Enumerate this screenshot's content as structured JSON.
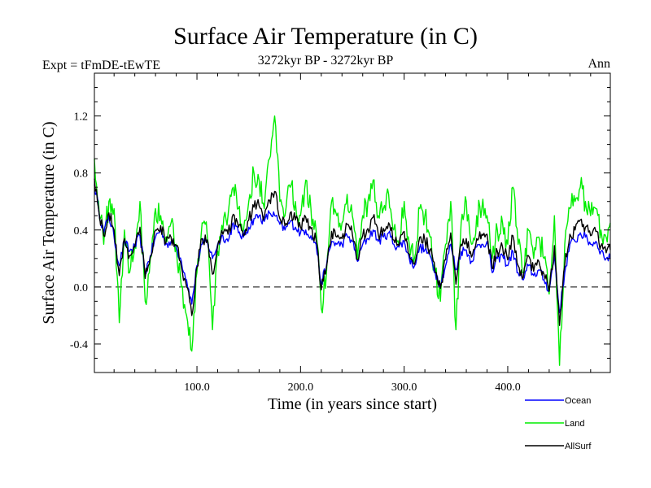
{
  "chart_data": {
    "type": "line",
    "title": "Surface Air Temperature (in C)",
    "subtitle": "3272kyr BP - 3272kyr BP",
    "expt_label": "Expt = tFmDE-tEwTE",
    "season_label": "Ann",
    "xlabel": "Time (in years since start)",
    "ylabel": "Surface Air Temperature (in C)",
    "xlim": [
      1,
      499
    ],
    "ylim": [
      -0.6,
      1.5
    ],
    "xticks": [
      100,
      200,
      300,
      400
    ],
    "xtick_labels": [
      "100.0",
      "200.0",
      "300.0",
      "400.0"
    ],
    "yticks": [
      -0.4,
      0.0,
      0.4,
      0.8,
      1.2
    ],
    "ytick_labels": [
      "-0.4",
      "0.0",
      "0.4",
      "0.8",
      "1.2"
    ],
    "zero_line": true,
    "series": [
      {
        "name": "Ocean",
        "color": "#0000ff",
        "x": [
          1,
          5,
          10,
          15,
          20,
          25,
          30,
          35,
          40,
          45,
          50,
          55,
          60,
          65,
          70,
          75,
          80,
          85,
          90,
          95,
          100,
          105,
          110,
          115,
          120,
          125,
          130,
          135,
          140,
          145,
          150,
          155,
          160,
          165,
          170,
          175,
          180,
          185,
          190,
          195,
          200,
          205,
          210,
          215,
          220,
          225,
          230,
          235,
          240,
          245,
          250,
          255,
          260,
          265,
          270,
          275,
          280,
          285,
          290,
          295,
          300,
          305,
          310,
          315,
          320,
          325,
          330,
          335,
          340,
          345,
          350,
          355,
          360,
          365,
          370,
          375,
          380,
          385,
          390,
          395,
          400,
          405,
          410,
          415,
          420,
          425,
          430,
          435,
          440,
          445,
          450,
          455,
          460,
          465,
          470,
          475,
          480,
          485,
          490,
          495,
          499
        ],
        "values": [
          0.72,
          0.55,
          0.38,
          0.5,
          0.35,
          0.15,
          0.32,
          0.25,
          0.28,
          0.36,
          0.1,
          0.22,
          0.35,
          0.4,
          0.3,
          0.32,
          0.28,
          0.18,
          0.05,
          -0.12,
          0.15,
          0.3,
          0.32,
          0.2,
          0.3,
          0.36,
          0.32,
          0.45,
          0.38,
          0.35,
          0.42,
          0.48,
          0.5,
          0.46,
          0.52,
          0.5,
          0.44,
          0.4,
          0.46,
          0.42,
          0.38,
          0.4,
          0.36,
          0.3,
          0.02,
          0.15,
          0.32,
          0.3,
          0.3,
          0.36,
          0.32,
          0.18,
          0.3,
          0.34,
          0.4,
          0.32,
          0.35,
          0.38,
          0.3,
          0.28,
          0.32,
          0.2,
          0.15,
          0.28,
          0.26,
          0.22,
          0.1,
          0.02,
          0.15,
          0.3,
          0.12,
          0.25,
          0.26,
          0.18,
          0.28,
          0.3,
          0.32,
          0.1,
          0.2,
          0.22,
          0.15,
          0.25,
          0.1,
          0.05,
          0.15,
          0.08,
          0.12,
          0.05,
          -0.02,
          0.22,
          -0.18,
          0.1,
          0.3,
          0.32,
          0.38,
          0.35,
          0.3,
          0.32,
          0.25,
          0.2,
          0.2
        ]
      },
      {
        "name": "Land",
        "color": "#00ee00",
        "x": [
          1,
          5,
          10,
          15,
          20,
          25,
          30,
          35,
          40,
          45,
          50,
          55,
          60,
          65,
          70,
          75,
          80,
          85,
          90,
          95,
          100,
          105,
          110,
          115,
          120,
          125,
          130,
          135,
          140,
          145,
          150,
          155,
          160,
          165,
          170,
          175,
          180,
          185,
          190,
          195,
          200,
          205,
          210,
          215,
          220,
          225,
          230,
          235,
          240,
          245,
          250,
          255,
          260,
          265,
          270,
          275,
          280,
          285,
          290,
          295,
          300,
          305,
          310,
          315,
          320,
          325,
          330,
          335,
          340,
          345,
          350,
          355,
          360,
          365,
          370,
          375,
          380,
          385,
          390,
          395,
          400,
          405,
          410,
          415,
          420,
          425,
          430,
          435,
          440,
          445,
          450,
          455,
          460,
          465,
          470,
          475,
          480,
          485,
          490,
          495,
          499
        ],
        "values": [
          0.9,
          0.6,
          0.3,
          0.6,
          0.55,
          -0.25,
          0.4,
          0.1,
          0.3,
          0.6,
          -0.1,
          0.2,
          0.55,
          0.5,
          0.35,
          0.45,
          0.3,
          0.0,
          -0.2,
          -0.45,
          0.1,
          0.45,
          0.35,
          -0.3,
          0.25,
          0.4,
          0.5,
          0.7,
          0.55,
          0.4,
          0.6,
          0.8,
          0.75,
          0.55,
          0.9,
          1.2,
          0.6,
          0.5,
          0.7,
          0.6,
          0.5,
          0.75,
          0.55,
          0.4,
          -0.15,
          0.1,
          0.6,
          0.5,
          0.45,
          0.65,
          0.5,
          0.2,
          0.5,
          0.6,
          0.75,
          0.5,
          0.55,
          0.65,
          0.4,
          0.3,
          0.6,
          0.3,
          0.2,
          0.55,
          0.5,
          0.35,
          0.1,
          -0.1,
          0.3,
          0.6,
          -0.3,
          0.45,
          0.6,
          0.3,
          0.5,
          0.55,
          0.5,
          0.2,
          0.4,
          0.45,
          0.3,
          0.7,
          0.3,
          0.1,
          0.4,
          0.2,
          0.35,
          0.2,
          -0.05,
          0.5,
          -0.55,
          0.3,
          0.55,
          0.6,
          0.7,
          0.6,
          0.5,
          0.55,
          0.4,
          0.35,
          0.45
        ]
      },
      {
        "name": "AllSurf",
        "color": "#000000",
        "x": [
          1,
          5,
          10,
          15,
          20,
          25,
          30,
          35,
          40,
          45,
          50,
          55,
          60,
          65,
          70,
          75,
          80,
          85,
          90,
          95,
          100,
          105,
          110,
          115,
          120,
          125,
          130,
          135,
          140,
          145,
          150,
          155,
          160,
          165,
          170,
          175,
          180,
          185,
          190,
          195,
          200,
          205,
          210,
          215,
          220,
          225,
          230,
          235,
          240,
          245,
          250,
          255,
          260,
          265,
          270,
          275,
          280,
          285,
          290,
          295,
          300,
          305,
          310,
          315,
          320,
          325,
          330,
          335,
          340,
          345,
          350,
          355,
          360,
          365,
          370,
          375,
          380,
          385,
          390,
          395,
          400,
          405,
          410,
          415,
          420,
          425,
          430,
          435,
          440,
          445,
          450,
          455,
          460,
          465,
          470,
          475,
          480,
          485,
          490,
          495,
          499
        ],
        "values": [
          0.76,
          0.55,
          0.36,
          0.52,
          0.4,
          0.08,
          0.34,
          0.22,
          0.28,
          0.42,
          0.06,
          0.21,
          0.4,
          0.43,
          0.31,
          0.35,
          0.29,
          0.14,
          0.0,
          -0.2,
          0.14,
          0.34,
          0.33,
          0.09,
          0.29,
          0.37,
          0.37,
          0.51,
          0.42,
          0.36,
          0.47,
          0.56,
          0.57,
          0.49,
          0.61,
          0.67,
          0.48,
          0.43,
          0.52,
          0.47,
          0.42,
          0.49,
          0.41,
          0.33,
          -0.02,
          0.14,
          0.39,
          0.35,
          0.34,
          0.44,
          0.37,
          0.19,
          0.36,
          0.41,
          0.49,
          0.37,
          0.41,
          0.45,
          0.33,
          0.29,
          0.39,
          0.23,
          0.16,
          0.35,
          0.33,
          0.26,
          0.1,
          -0.01,
          0.19,
          0.38,
          0.02,
          0.3,
          0.34,
          0.21,
          0.34,
          0.37,
          0.37,
          0.13,
          0.25,
          0.28,
          0.19,
          0.36,
          0.15,
          0.07,
          0.22,
          0.11,
          0.18,
          0.09,
          -0.03,
          0.29,
          -0.27,
          0.15,
          0.37,
          0.4,
          0.47,
          0.42,
          0.36,
          0.39,
          0.29,
          0.24,
          0.26
        ]
      }
    ]
  }
}
